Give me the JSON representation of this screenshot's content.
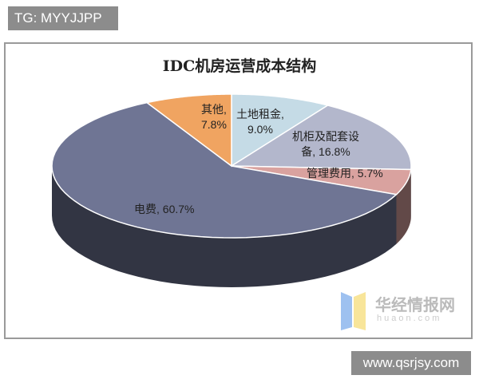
{
  "watermark_top": "TG: MYYJJPP",
  "watermark_bottom": "www.qsrjsy.com",
  "logo": {
    "name": "华经情报网",
    "domain": "huaon.com"
  },
  "chart_data": {
    "type": "pie",
    "style": "3d",
    "title": "IDC机房运营成本结构",
    "slices": [
      {
        "label": "土地租金",
        "value": 9.0,
        "text": "土地租金,",
        "pct": "9.0%",
        "color": "#c5dbe6"
      },
      {
        "label": "机柜及配套设备",
        "value": 16.8,
        "text": "机柜及配套设",
        "text2": "备, 16.8%",
        "color": "#b3b7cc"
      },
      {
        "label": "管理费用",
        "value": 5.7,
        "text": "管理费用, 5.7%",
        "color": "#d9a29f"
      },
      {
        "label": "电费",
        "value": 60.7,
        "text": "电费, 60.7%",
        "color": "#6f7594"
      },
      {
        "label": "其他",
        "value": 7.8,
        "text": "其他,",
        "pct": "7.8%",
        "color": "#f0a461"
      }
    ]
  }
}
